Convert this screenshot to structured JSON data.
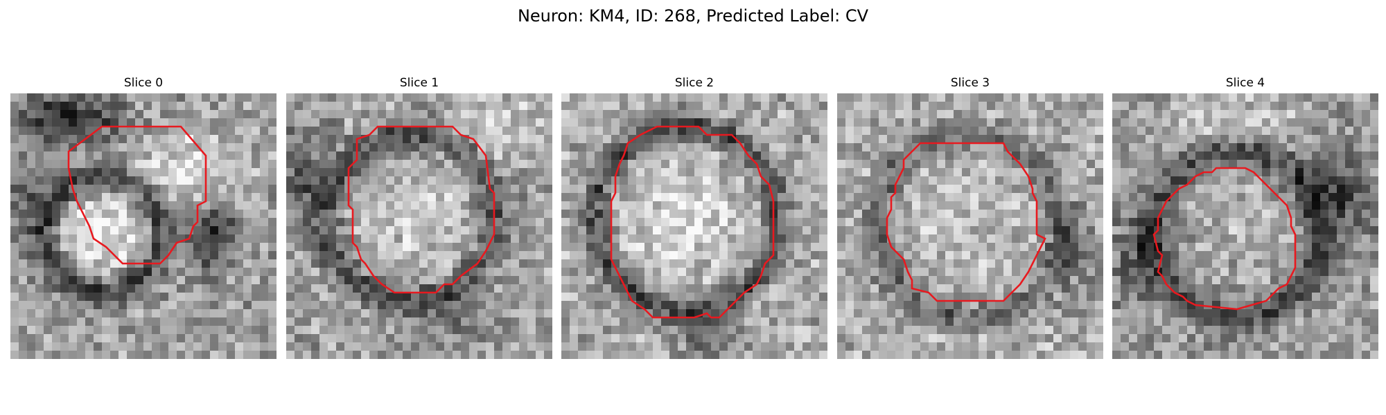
{
  "figure": {
    "title": "Neuron: KM4, ID: 268, Predicted Label: CV"
  },
  "panels": [
    {
      "title": "Slice 0"
    },
    {
      "title": "Slice 1"
    },
    {
      "title": "Slice 2"
    },
    {
      "title": "Slice 3"
    },
    {
      "title": "Slice 4"
    }
  ],
  "colors": {
    "contour": "#e8191f",
    "background": "#ffffff"
  }
}
